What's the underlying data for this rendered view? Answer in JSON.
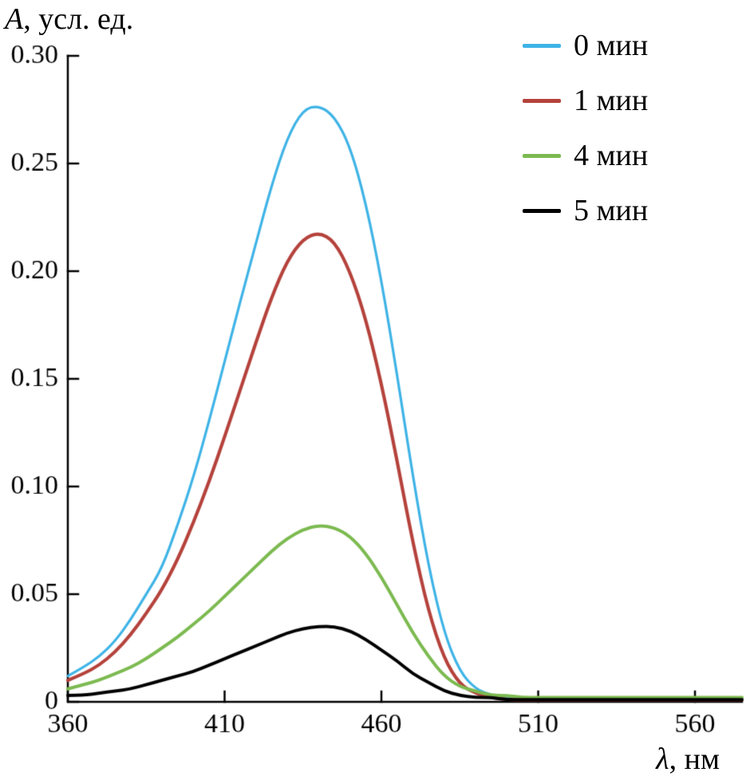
{
  "figure": {
    "background": "#ffffff"
  },
  "chart_data": {
    "type": "line",
    "title": "",
    "ylabel": "A, усл. ед.",
    "ylabel_var": "A",
    "ylabel_rest": ", усл. ед.",
    "xlabel": "λ, нм",
    "xlabel_var": "λ",
    "xlabel_rest": ", нм",
    "xlim": [
      360,
      575
    ],
    "ylim": [
      0,
      0.3
    ],
    "x_ticks": [
      360,
      410,
      460,
      510,
      560
    ],
    "x_tick_labels": [
      "360",
      "410",
      "460",
      "510",
      "560"
    ],
    "y_ticks": [
      0,
      0.05,
      0.1,
      0.15,
      0.2,
      0.25,
      0.3
    ],
    "y_tick_labels": [
      "0",
      "0.05",
      "0.10",
      "0.15",
      "0.20",
      "0.25",
      "0.30"
    ],
    "grid": false,
    "legend_position": "top-right",
    "axis_color": "#000000",
    "x": [
      360,
      365,
      370,
      375,
      380,
      385,
      390,
      395,
      400,
      405,
      410,
      415,
      420,
      425,
      430,
      435,
      440,
      445,
      450,
      455,
      460,
      465,
      470,
      475,
      480,
      485,
      490,
      495,
      500,
      505,
      510,
      515,
      520,
      525,
      530,
      535,
      540,
      545,
      550,
      555,
      560,
      565,
      570,
      575
    ],
    "series": [
      {
        "name": "0 мин",
        "color": "#3eb3e6",
        "line_width": 3.2,
        "values": [
          0.012,
          0.016,
          0.021,
          0.028,
          0.038,
          0.05,
          0.062,
          0.082,
          0.104,
          0.13,
          0.158,
          0.186,
          0.213,
          0.24,
          0.262,
          0.275,
          0.277,
          0.272,
          0.258,
          0.232,
          0.196,
          0.152,
          0.105,
          0.063,
          0.032,
          0.014,
          0.006,
          0.003,
          0.002,
          0.002,
          0.001,
          0.001,
          0.001,
          0.001,
          0.001,
          0.001,
          0.001,
          0.001,
          0.001,
          0.001,
          0.001,
          0.001,
          0.001,
          0.001
        ]
      },
      {
        "name": "1 мин",
        "color": "#b5423c",
        "line_width": 4.2,
        "values": [
          0.01,
          0.013,
          0.017,
          0.023,
          0.031,
          0.041,
          0.052,
          0.066,
          0.083,
          0.102,
          0.123,
          0.145,
          0.167,
          0.188,
          0.205,
          0.215,
          0.218,
          0.214,
          0.2,
          0.178,
          0.148,
          0.112,
          0.074,
          0.042,
          0.02,
          0.008,
          0.004,
          0.002,
          0.001,
          0.001,
          0.001,
          0.001,
          0.001,
          0.001,
          0.001,
          0.001,
          0.001,
          0.001,
          0.001,
          0.001,
          0.001,
          0.001,
          0.001,
          0.001
        ]
      },
      {
        "name": "4 мин",
        "color": "#7cba50",
        "line_width": 4.0,
        "values": [
          0.006,
          0.008,
          0.01,
          0.013,
          0.016,
          0.02,
          0.025,
          0.03,
          0.036,
          0.042,
          0.049,
          0.056,
          0.063,
          0.07,
          0.076,
          0.08,
          0.082,
          0.081,
          0.077,
          0.069,
          0.058,
          0.045,
          0.032,
          0.021,
          0.012,
          0.007,
          0.005,
          0.003,
          0.003,
          0.002,
          0.002,
          0.002,
          0.002,
          0.002,
          0.002,
          0.002,
          0.002,
          0.002,
          0.002,
          0.002,
          0.002,
          0.002,
          0.002,
          0.002
        ]
      },
      {
        "name": "5 мин",
        "color": "#000000",
        "line_width": 4.0,
        "values": [
          0.003,
          0.003,
          0.004,
          0.005,
          0.006,
          0.008,
          0.01,
          0.012,
          0.014,
          0.017,
          0.02,
          0.023,
          0.026,
          0.029,
          0.032,
          0.034,
          0.035,
          0.035,
          0.033,
          0.029,
          0.024,
          0.019,
          0.013,
          0.009,
          0.005,
          0.003,
          0.002,
          0.002,
          0.001,
          0.001,
          0.001,
          0.001,
          0.001,
          0.001,
          0.001,
          0.001,
          0.001,
          0.001,
          0.001,
          0.001,
          0.001,
          0.001,
          0.001,
          0.001
        ]
      }
    ]
  }
}
